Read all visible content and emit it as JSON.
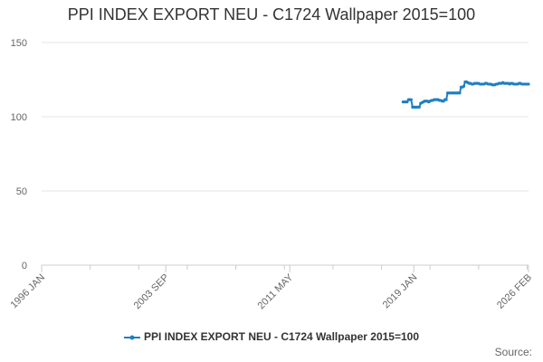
{
  "title": "PPI INDEX EXPORT NEU - C1724 Wallpaper 2015=100",
  "legend_label": "PPI INDEX EXPORT NEU - C1724 Wallpaper 2015=100",
  "source_label": "Source:",
  "colors": {
    "series": "#1f7fc1",
    "grid": "#e6e6e6",
    "axis": "#cccccc",
    "tick_text": "#666666"
  },
  "chart_data": {
    "type": "line",
    "title": "PPI INDEX EXPORT NEU - C1724 Wallpaper 2015=100",
    "xlabel": "",
    "ylabel": "",
    "x_range": [
      "1996-01",
      "2026-02"
    ],
    "x_tick_labels": [
      "1996 JAN",
      "2003 SEP",
      "2011 MAY",
      "2019 JAN",
      "2026 FEB"
    ],
    "x_tick_dates": [
      "1996-01",
      "2003-09",
      "2011-05",
      "2019-01",
      "2026-02"
    ],
    "ylim": [
      0,
      150
    ],
    "y_ticks": [
      0,
      50,
      100,
      150
    ],
    "grid": true,
    "legend": "bottom",
    "series": [
      {
        "name": "PPI INDEX EXPORT NEU - C1724 Wallpaper 2015=100",
        "points": [
          [
            "2018-05",
            110
          ],
          [
            "2018-06",
            110
          ],
          [
            "2018-07",
            110
          ],
          [
            "2018-08",
            110
          ],
          [
            "2018-09",
            111.5
          ],
          [
            "2018-10",
            111.5
          ],
          [
            "2018-11",
            111.5
          ],
          [
            "2018-12",
            106.5
          ],
          [
            "2019-01",
            106.5
          ],
          [
            "2019-02",
            106.5
          ],
          [
            "2019-03",
            106.5
          ],
          [
            "2019-04",
            106.5
          ],
          [
            "2019-05",
            106.5
          ],
          [
            "2019-06",
            109
          ],
          [
            "2019-07",
            109.5
          ],
          [
            "2019-08",
            110
          ],
          [
            "2019-09",
            110.5
          ],
          [
            "2019-10",
            110.5
          ],
          [
            "2019-11",
            110.5
          ],
          [
            "2019-12",
            110
          ],
          [
            "2020-01",
            110.5
          ],
          [
            "2020-02",
            111
          ],
          [
            "2020-03",
            111
          ],
          [
            "2020-04",
            111.5
          ],
          [
            "2020-05",
            111.5
          ],
          [
            "2020-06",
            111.5
          ],
          [
            "2020-07",
            111.5
          ],
          [
            "2020-08",
            111
          ],
          [
            "2020-09",
            111
          ],
          [
            "2020-10",
            110.5
          ],
          [
            "2020-11",
            110.5
          ],
          [
            "2020-12",
            111.5
          ],
          [
            "2021-01",
            111.5
          ],
          [
            "2021-02",
            116
          ],
          [
            "2021-03",
            116
          ],
          [
            "2021-04",
            116
          ],
          [
            "2021-05",
            116
          ],
          [
            "2021-06",
            116
          ],
          [
            "2021-07",
            116
          ],
          [
            "2021-08",
            116
          ],
          [
            "2021-09",
            116
          ],
          [
            "2021-10",
            116
          ],
          [
            "2021-11",
            116
          ],
          [
            "2021-12",
            120
          ],
          [
            "2022-01",
            120
          ],
          [
            "2022-02",
            120.5
          ],
          [
            "2022-03",
            123.5
          ],
          [
            "2022-04",
            123.5
          ],
          [
            "2022-05",
            123
          ],
          [
            "2022-06",
            122.5
          ],
          [
            "2022-07",
            122.5
          ],
          [
            "2022-08",
            122
          ],
          [
            "2022-09",
            122
          ],
          [
            "2022-10",
            122.5
          ],
          [
            "2022-11",
            122.5
          ],
          [
            "2022-12",
            122.5
          ],
          [
            "2023-01",
            122.5
          ],
          [
            "2023-02",
            122
          ],
          [
            "2023-03",
            122
          ],
          [
            "2023-04",
            122
          ],
          [
            "2023-05",
            122
          ],
          [
            "2023-06",
            122.5
          ],
          [
            "2023-07",
            122.5
          ],
          [
            "2023-08",
            122
          ],
          [
            "2023-09",
            122
          ],
          [
            "2023-10",
            122
          ],
          [
            "2023-11",
            121.5
          ],
          [
            "2023-12",
            121.5
          ],
          [
            "2024-01",
            121.5
          ],
          [
            "2024-02",
            122
          ],
          [
            "2024-03",
            122
          ],
          [
            "2024-04",
            122.5
          ],
          [
            "2024-05",
            122.5
          ],
          [
            "2024-06",
            122.5
          ],
          [
            "2024-07",
            123
          ],
          [
            "2024-08",
            122.5
          ],
          [
            "2024-09",
            122.5
          ],
          [
            "2024-10",
            122.5
          ],
          [
            "2024-11",
            122.5
          ],
          [
            "2024-12",
            122
          ],
          [
            "2025-01",
            122.5
          ],
          [
            "2025-02",
            122.5
          ],
          [
            "2025-03",
            122
          ],
          [
            "2025-04",
            122
          ],
          [
            "2025-05",
            122
          ],
          [
            "2025-06",
            122
          ],
          [
            "2025-07",
            122.5
          ],
          [
            "2025-08",
            122.5
          ],
          [
            "2025-09",
            122
          ],
          [
            "2025-10",
            122
          ],
          [
            "2025-11",
            122
          ],
          [
            "2025-12",
            122
          ],
          [
            "2026-01",
            122
          ],
          [
            "2026-02",
            122
          ]
        ]
      }
    ]
  }
}
